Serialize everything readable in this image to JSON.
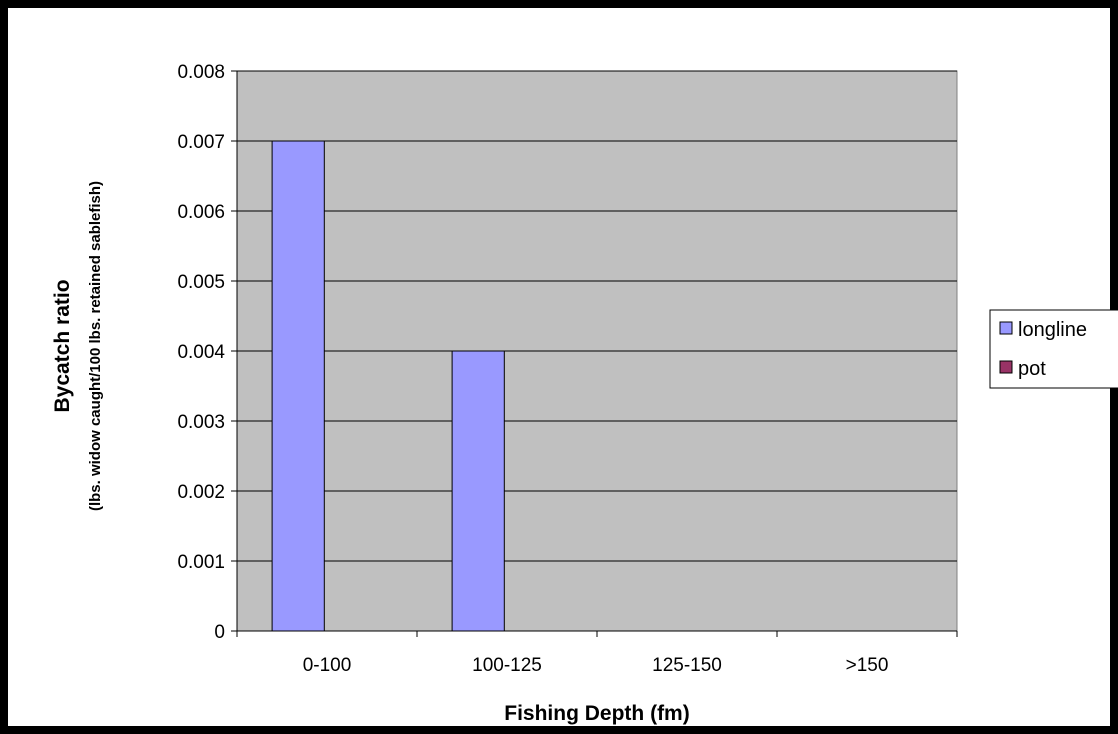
{
  "chart_data": {
    "type": "bar",
    "categories": [
      "0-100",
      "100-125",
      "125-150",
      ">150"
    ],
    "series": [
      {
        "name": "longline",
        "values": [
          0.007,
          0.004,
          0,
          0
        ]
      },
      {
        "name": "pot",
        "values": [
          0,
          0,
          0,
          0
        ]
      }
    ],
    "title": "",
    "xlabel": "Fishing Depth (fm)",
    "ylabel": "Bycatch ratio",
    "ylabel_sub": "(lbs. widow caught/100 lbs. retained sablefish)",
    "ylim": [
      0,
      0.008
    ],
    "yticks": [
      "0",
      "0.001",
      "0.002",
      "0.003",
      "0.004",
      "0.005",
      "0.006",
      "0.007",
      "0.008"
    ],
    "grid": true,
    "legend_position": "right",
    "colors": {
      "longline": "#9999ff",
      "pot": "#993366",
      "plot_background": "#c0c0c0",
      "frame": "#000000"
    }
  }
}
